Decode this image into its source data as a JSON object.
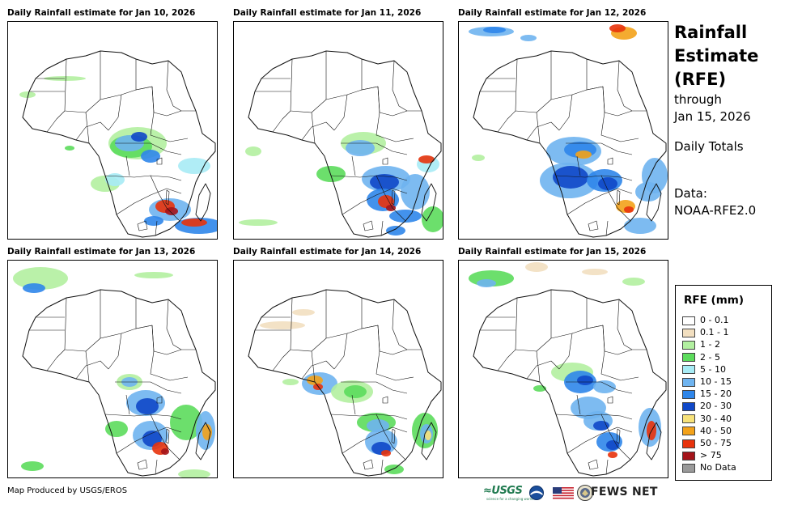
{
  "panels": [
    {
      "title": "Daily Rainfall estimate for Jan 10, 2026"
    },
    {
      "title": "Daily Rainfall estimate for Jan 11, 2026"
    },
    {
      "title": "Daily Rainfall estimate for Jan 12, 2026"
    },
    {
      "title": "Daily Rainfall estimate for Jan 13, 2026"
    },
    {
      "title": "Daily Rainfall estimate for Jan 14, 2026"
    },
    {
      "title": "Daily Rainfall estimate for Jan 15, 2026"
    }
  ],
  "side": {
    "title_lines": [
      "Rainfall",
      "Estimate",
      "(RFE)"
    ],
    "through": "through",
    "date": "Jan 15, 2026",
    "totals": "Daily Totals",
    "data_label": "Data:",
    "data_source": "NOAA-RFE2.0"
  },
  "legend": {
    "title": "RFE (mm)",
    "items": [
      {
        "label": "0 - 0.1",
        "color": "#ffffff"
      },
      {
        "label": "0.1 - 1",
        "color": "#f2dfc0"
      },
      {
        "label": "1 - 2",
        "color": "#b2f0a0"
      },
      {
        "label": "2 - 5",
        "color": "#5cdc5c"
      },
      {
        "label": "5 - 10",
        "color": "#a7ebf5"
      },
      {
        "label": "10 - 15",
        "color": "#6fb4f0"
      },
      {
        "label": "15 - 20",
        "color": "#2f86ea"
      },
      {
        "label": "20 - 30",
        "color": "#1048c8"
      },
      {
        "label": "30 - 40",
        "color": "#f7e27a"
      },
      {
        "label": "40 - 50",
        "color": "#f3a21a"
      },
      {
        "label": "50 - 75",
        "color": "#e8330c"
      },
      {
        "label": "> 75",
        "color": "#a4141a"
      },
      {
        "label": "No Data",
        "color": "#9a9a9a"
      }
    ]
  },
  "footer": {
    "credit": "Map Produced by USGS/EROS",
    "usgs": "≈USGS",
    "usgs_tagline": "science for a changing world",
    "fews": "FEWS NET"
  }
}
